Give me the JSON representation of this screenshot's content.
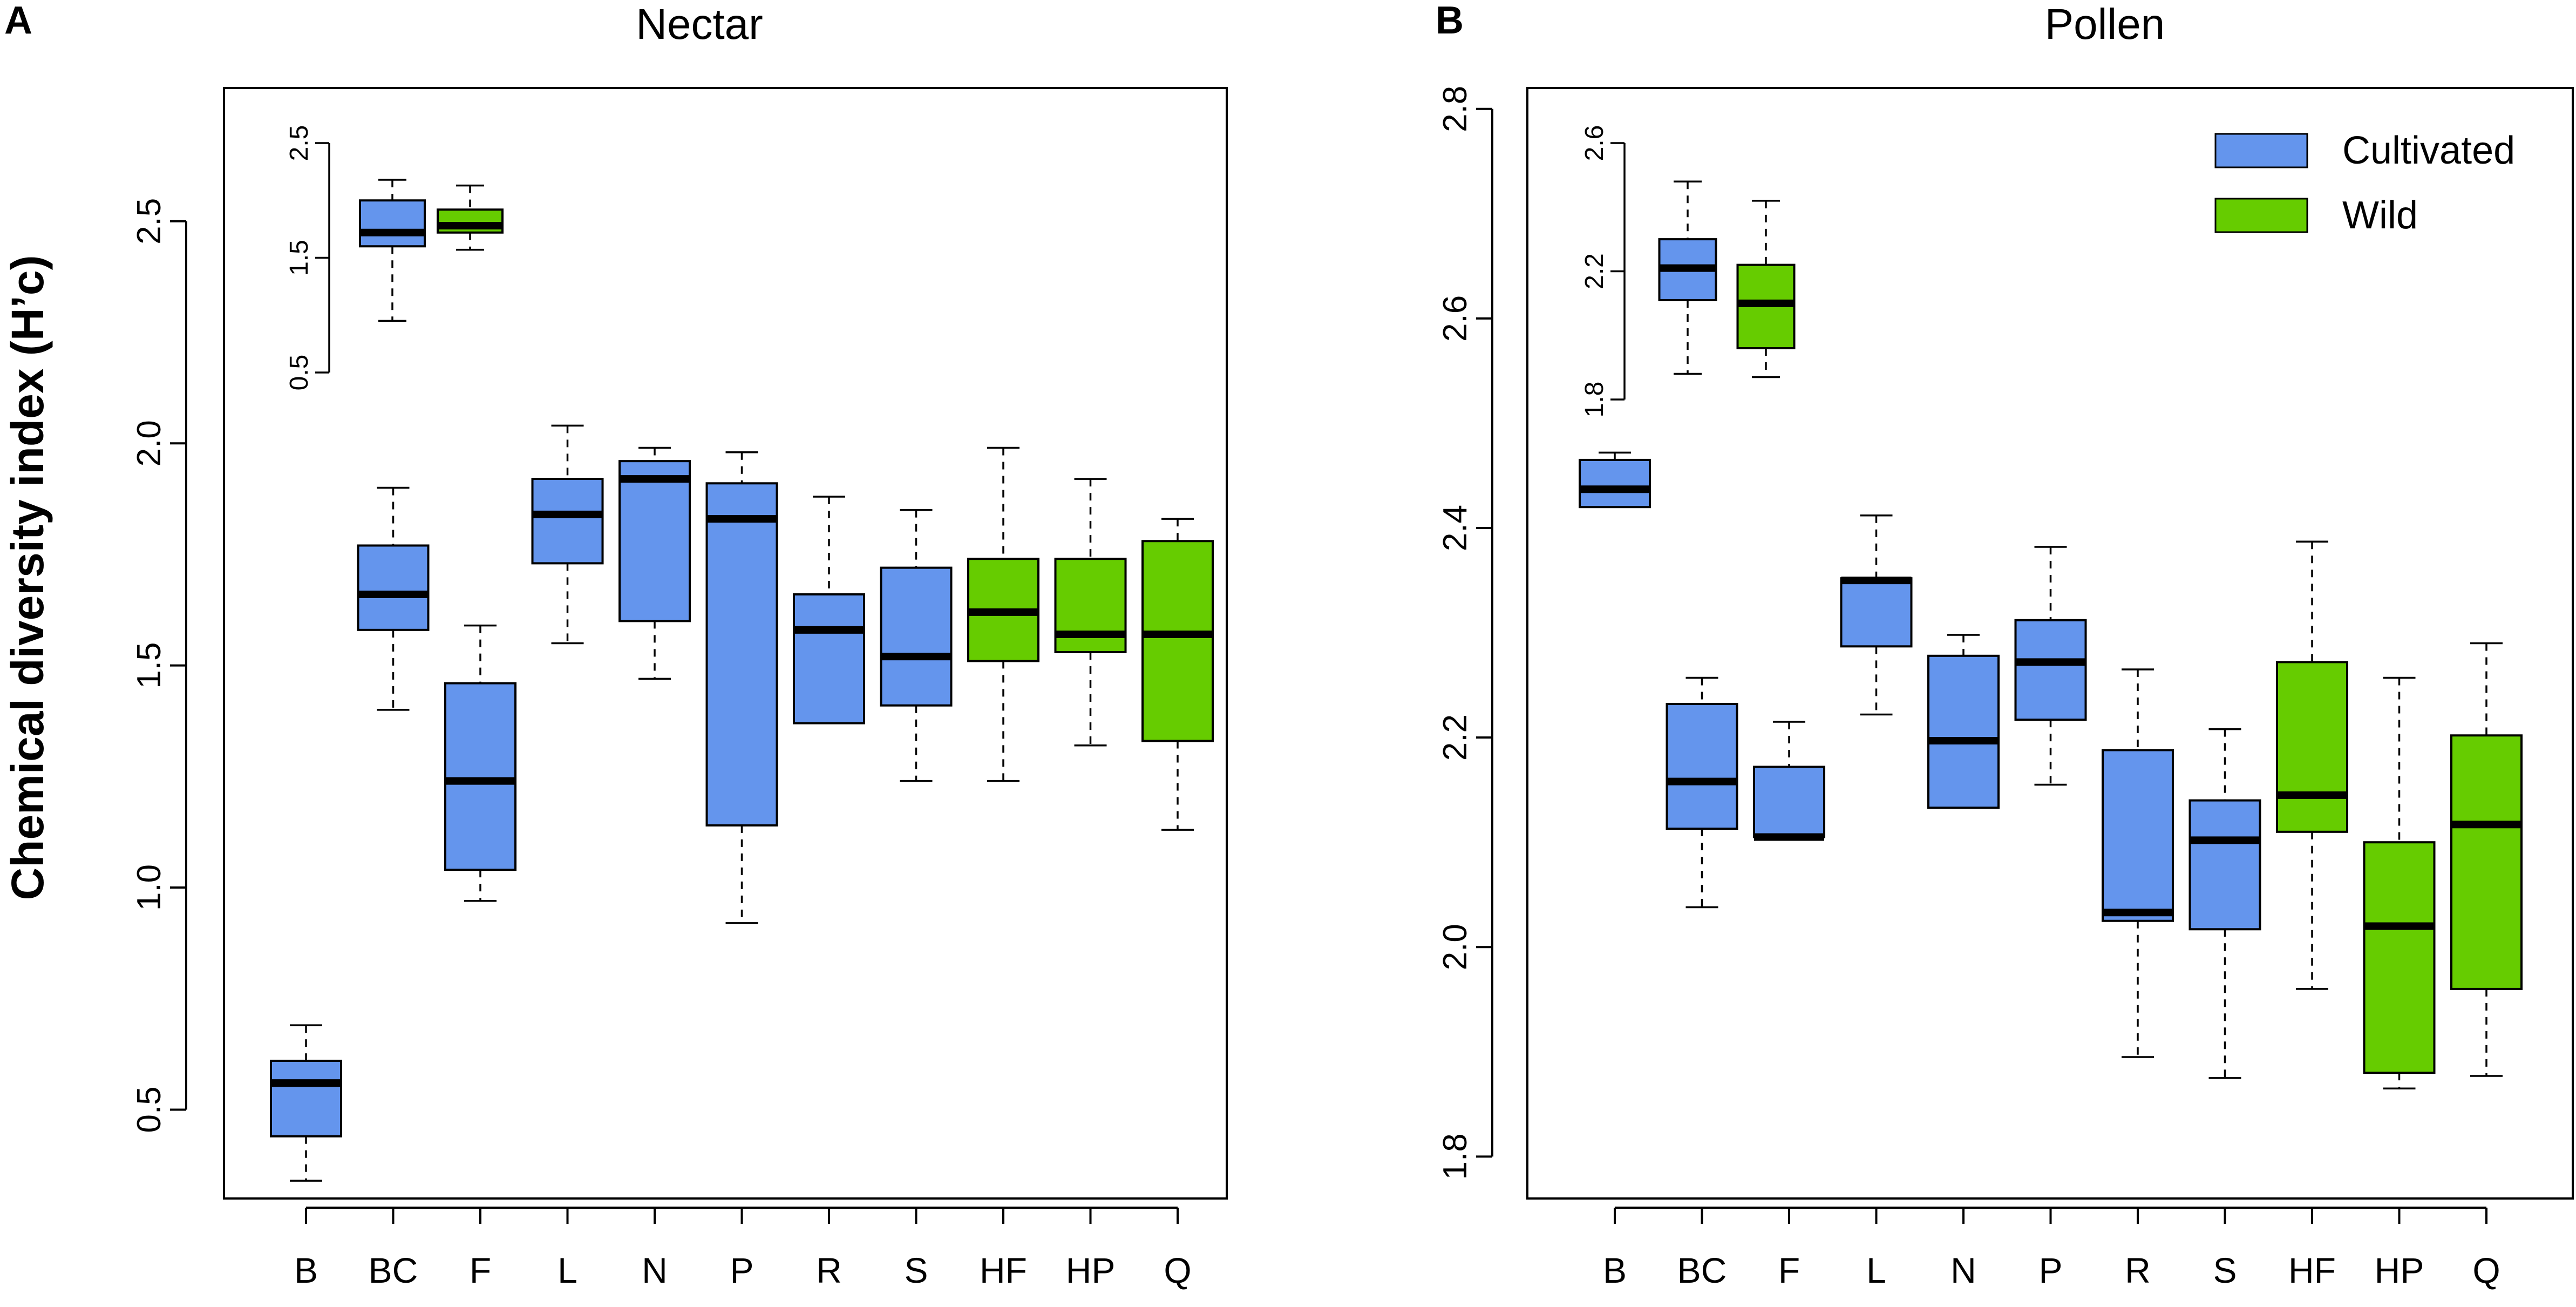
{
  "figure": {
    "ylabel": "Chemical diversity index (H’c)"
  },
  "colors": {
    "cultivated": "#6495ED",
    "wild": "#66CC00",
    "median": "#000000"
  },
  "legend": {
    "items": [
      {
        "label": "Cultivated",
        "group": "cultivated"
      },
      {
        "label": "Wild",
        "group": "wild"
      }
    ]
  },
  "chart_data": [
    {
      "type": "box",
      "panel_letter": "A",
      "title": "Nectar",
      "xlabel": "",
      "ylabel": "Chemical diversity index (H’c)",
      "ylim": [
        0.3,
        2.8
      ],
      "yticks": [
        0.5,
        1.0,
        1.5,
        2.0,
        2.5
      ],
      "ytick_labels": [
        "0.5",
        "1.0",
        "1.5",
        "2.0",
        "2.5"
      ],
      "categories": [
        "B",
        "BC",
        "F",
        "L",
        "N",
        "P",
        "R",
        "S",
        "HF",
        "HP",
        "Q"
      ],
      "boxes": [
        {
          "cat": "B",
          "group": "cultivated",
          "min": 0.34,
          "q1": 0.44,
          "median": 0.56,
          "q3": 0.61,
          "max": 0.69
        },
        {
          "cat": "BC",
          "group": "cultivated",
          "min": 1.4,
          "q1": 1.58,
          "median": 1.66,
          "q3": 1.77,
          "max": 1.9
        },
        {
          "cat": "F",
          "group": "cultivated",
          "min": 0.97,
          "q1": 1.04,
          "median": 1.24,
          "q3": 1.46,
          "max": 1.59
        },
        {
          "cat": "L",
          "group": "cultivated",
          "min": 1.55,
          "q1": 1.73,
          "median": 1.84,
          "q3": 1.92,
          "max": 2.04
        },
        {
          "cat": "N",
          "group": "cultivated",
          "min": 1.47,
          "q1": 1.6,
          "median": 1.92,
          "q3": 1.96,
          "max": 1.99
        },
        {
          "cat": "P",
          "group": "cultivated",
          "min": 0.92,
          "q1": 1.14,
          "median": 1.83,
          "q3": 1.91,
          "max": 1.98
        },
        {
          "cat": "R",
          "group": "cultivated",
          "min": 1.37,
          "q1": 1.37,
          "median": 1.58,
          "q3": 1.66,
          "max": 1.88
        },
        {
          "cat": "S",
          "group": "cultivated",
          "min": 1.24,
          "q1": 1.41,
          "median": 1.52,
          "q3": 1.72,
          "max": 1.85
        },
        {
          "cat": "HF",
          "group": "wild",
          "min": 1.24,
          "q1": 1.51,
          "median": 1.62,
          "q3": 1.74,
          "max": 1.99
        },
        {
          "cat": "HP",
          "group": "wild",
          "min": 1.32,
          "q1": 1.53,
          "median": 1.57,
          "q3": 1.74,
          "max": 1.92
        },
        {
          "cat": "Q",
          "group": "wild",
          "min": 1.13,
          "q1": 1.33,
          "median": 1.57,
          "q3": 1.78,
          "max": 1.83
        }
      ],
      "inset": {
        "ylim": [
          0.5,
          2.5
        ],
        "yticks": [
          0.5,
          1.5,
          2.5
        ],
        "ytick_labels": [
          "0.5",
          "1.5",
          "2.5"
        ],
        "boxes": [
          {
            "group": "cultivated",
            "min": 0.95,
            "q1": 1.6,
            "median": 1.72,
            "q3": 2.0,
            "max": 2.18
          },
          {
            "group": "wild",
            "min": 1.57,
            "q1": 1.72,
            "median": 1.78,
            "q3": 1.92,
            "max": 2.13
          }
        ]
      }
    },
    {
      "type": "box",
      "panel_letter": "B",
      "title": "Pollen",
      "xlabel": "",
      "ylabel": "",
      "ylim": [
        1.76,
        2.82
      ],
      "yticks": [
        1.8,
        2.0,
        2.2,
        2.4,
        2.6,
        2.8
      ],
      "ytick_labels": [
        "1.8",
        "2.0",
        "2.2",
        "2.4",
        "2.6",
        "2.8"
      ],
      "categories": [
        "B",
        "BC",
        "F",
        "L",
        "N",
        "P",
        "R",
        "S",
        "HF",
        "HP",
        "Q"
      ],
      "boxes": [
        {
          "cat": "B",
          "group": "cultivated",
          "min": 2.42,
          "q1": 2.42,
          "median": 2.437,
          "q3": 2.465,
          "max": 2.472
        },
        {
          "cat": "BC",
          "group": "cultivated",
          "min": 2.038,
          "q1": 2.113,
          "median": 2.158,
          "q3": 2.232,
          "max": 2.257
        },
        {
          "cat": "F",
          "group": "cultivated",
          "min": 2.105,
          "q1": 2.105,
          "median": 2.105,
          "q3": 2.172,
          "max": 2.215
        },
        {
          "cat": "L",
          "group": "cultivated",
          "min": 2.222,
          "q1": 2.287,
          "median": 2.35,
          "q3": 2.352,
          "max": 2.412
        },
        {
          "cat": "N",
          "group": "cultivated",
          "min": 2.133,
          "q1": 2.133,
          "median": 2.197,
          "q3": 2.278,
          "max": 2.298
        },
        {
          "cat": "P",
          "group": "cultivated",
          "min": 2.155,
          "q1": 2.217,
          "median": 2.272,
          "q3": 2.312,
          "max": 2.382
        },
        {
          "cat": "R",
          "group": "cultivated",
          "min": 1.895,
          "q1": 2.025,
          "median": 2.033,
          "q3": 2.188,
          "max": 2.265
        },
        {
          "cat": "S",
          "group": "cultivated",
          "min": 1.875,
          "q1": 2.017,
          "median": 2.102,
          "q3": 2.14,
          "max": 2.208
        },
        {
          "cat": "HF",
          "group": "wild",
          "min": 1.96,
          "q1": 2.11,
          "median": 2.145,
          "q3": 2.272,
          "max": 2.387
        },
        {
          "cat": "HP",
          "group": "wild",
          "min": 1.865,
          "q1": 1.88,
          "median": 2.02,
          "q3": 2.1,
          "max": 2.257
        },
        {
          "cat": "Q",
          "group": "wild",
          "min": 1.877,
          "q1": 1.96,
          "median": 2.117,
          "q3": 2.202,
          "max": 2.29
        }
      ],
      "inset": {
        "ylim": [
          1.8,
          2.6
        ],
        "yticks": [
          1.8,
          2.2,
          2.6
        ],
        "ytick_labels": [
          "1.8",
          "2.2",
          "2.6"
        ],
        "boxes": [
          {
            "group": "cultivated",
            "min": 1.88,
            "q1": 2.11,
            "median": 2.21,
            "q3": 2.3,
            "max": 2.48
          },
          {
            "group": "wild",
            "min": 1.87,
            "q1": 1.96,
            "median": 2.1,
            "q3": 2.22,
            "max": 2.42
          }
        ]
      }
    }
  ]
}
